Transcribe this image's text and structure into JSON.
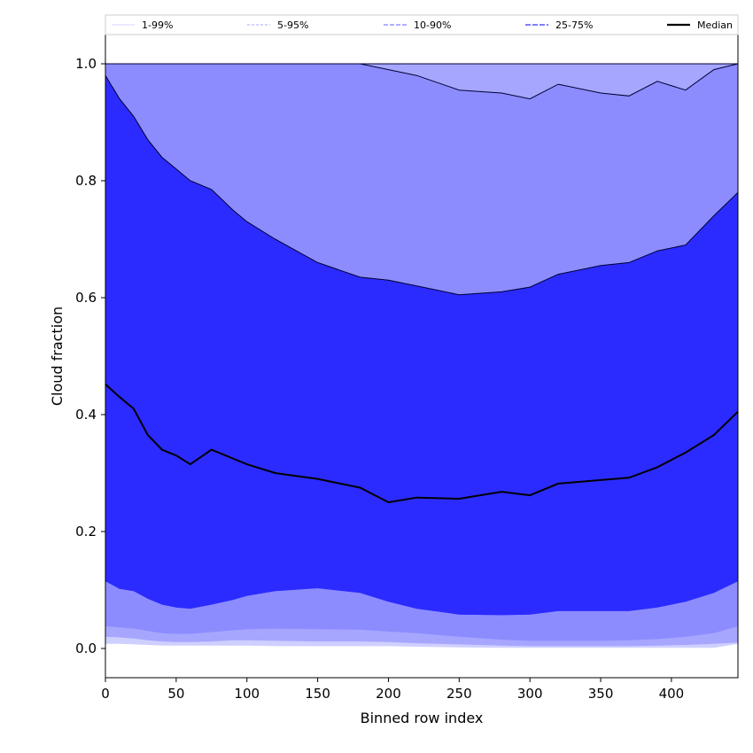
{
  "chart_data": {
    "type": "area",
    "title": "",
    "xlabel": "Binned row index",
    "ylabel": "Cloud fraction",
    "xlim": [
      0,
      447
    ],
    "ylim": [
      -0.05,
      1.05
    ],
    "xticks": [
      0,
      50,
      100,
      150,
      200,
      250,
      300,
      350,
      400
    ],
    "yticks": [
      0.0,
      0.2,
      0.4,
      0.6,
      0.8,
      1.0
    ],
    "ytick_labels": [
      "0.0",
      "0.2",
      "0.4",
      "0.6",
      "0.8",
      "1.0"
    ],
    "legend": {
      "placement": "top",
      "entries": [
        {
          "label": "1-99%",
          "color": "#d6d6ff",
          "style": "solid-thin"
        },
        {
          "label": "5-95%",
          "color": "#a8a8ff",
          "style": "dashed-thin"
        },
        {
          "label": "10-90%",
          "color": "#8080ff",
          "style": "dashed"
        },
        {
          "label": "25-75%",
          "color": "#5555ff",
          "style": "dashed-bold"
        },
        {
          "label": "Median",
          "color": "#000000",
          "style": "solid-bold"
        }
      ]
    },
    "x": [
      0,
      10,
      20,
      30,
      40,
      50,
      60,
      75,
      90,
      100,
      120,
      150,
      180,
      200,
      220,
      250,
      280,
      300,
      320,
      350,
      370,
      390,
      410,
      430,
      447
    ],
    "series": [
      {
        "name": "1-99%",
        "color": "#cfcfff",
        "lower": [
          0.008,
          0.008,
          0.007,
          0.006,
          0.005,
          0.005,
          0.005,
          0.005,
          0.005,
          0.005,
          0.004,
          0.004,
          0.004,
          0.004,
          0.003,
          0.002,
          0.001,
          0.001,
          0.001,
          0.001,
          0.001,
          0.001,
          0.001,
          0.001,
          0.008
        ],
        "upper": [
          1.0,
          1.0,
          1.0,
          1.0,
          1.0,
          1.0,
          1.0,
          1.0,
          1.0,
          1.0,
          1.0,
          1.0,
          1.0,
          1.0,
          1.0,
          1.0,
          1.0,
          1.0,
          1.0,
          1.0,
          1.0,
          1.0,
          1.0,
          1.0,
          1.0
        ]
      },
      {
        "name": "5-95%",
        "color": "#a6a6ff",
        "lower": [
          0.02,
          0.019,
          0.017,
          0.014,
          0.012,
          0.011,
          0.011,
          0.012,
          0.014,
          0.014,
          0.013,
          0.012,
          0.012,
          0.011,
          0.009,
          0.007,
          0.005,
          0.004,
          0.004,
          0.004,
          0.004,
          0.005,
          0.006,
          0.008,
          0.01
        ],
        "upper": [
          1.0,
          1.0,
          1.0,
          1.0,
          1.0,
          1.0,
          1.0,
          1.0,
          1.0,
          1.0,
          1.0,
          1.0,
          1.0,
          1.0,
          1.0,
          1.0,
          1.0,
          1.0,
          1.0,
          1.0,
          1.0,
          1.0,
          1.0,
          1.0,
          1.0
        ]
      },
      {
        "name": "10-90%",
        "color": "#8c8cff",
        "lower": [
          0.038,
          0.036,
          0.034,
          0.03,
          0.026,
          0.025,
          0.025,
          0.028,
          0.031,
          0.033,
          0.034,
          0.033,
          0.032,
          0.029,
          0.026,
          0.02,
          0.015,
          0.013,
          0.013,
          0.013,
          0.014,
          0.016,
          0.02,
          0.026,
          0.038
        ],
        "upper": [
          1.0,
          1.0,
          1.0,
          1.0,
          1.0,
          1.0,
          1.0,
          1.0,
          1.0,
          1.0,
          1.0,
          1.0,
          1.0,
          0.99,
          0.98,
          0.955,
          0.95,
          0.94,
          0.965,
          0.95,
          0.945,
          0.97,
          0.955,
          0.99,
          1.0
        ]
      },
      {
        "name": "25-75%",
        "color": "#5555ff",
        "lower": [
          0.115,
          0.102,
          0.098,
          0.085,
          0.075,
          0.07,
          0.068,
          0.075,
          0.083,
          0.09,
          0.098,
          0.103,
          0.095,
          0.08,
          0.068,
          0.058,
          0.057,
          0.058,
          0.064,
          0.064,
          0.064,
          0.07,
          0.08,
          0.095,
          0.115
        ],
        "upper": [
          0.98,
          0.94,
          0.91,
          0.87,
          0.84,
          0.82,
          0.8,
          0.785,
          0.75,
          0.73,
          0.7,
          0.66,
          0.635,
          0.63,
          0.62,
          0.605,
          0.61,
          0.618,
          0.64,
          0.655,
          0.66,
          0.68,
          0.69,
          0.74,
          0.78
        ]
      },
      {
        "name": "Median",
        "color": "#000000",
        "values": [
          0.452,
          0.43,
          0.41,
          0.365,
          0.34,
          0.33,
          0.315,
          0.34,
          0.325,
          0.315,
          0.3,
          0.29,
          0.275,
          0.25,
          0.258,
          0.256,
          0.268,
          0.262,
          0.282,
          0.288,
          0.292,
          0.31,
          0.335,
          0.365,
          0.405
        ]
      }
    ],
    "band_fill_color": "#2b2bff",
    "grid": false
  }
}
